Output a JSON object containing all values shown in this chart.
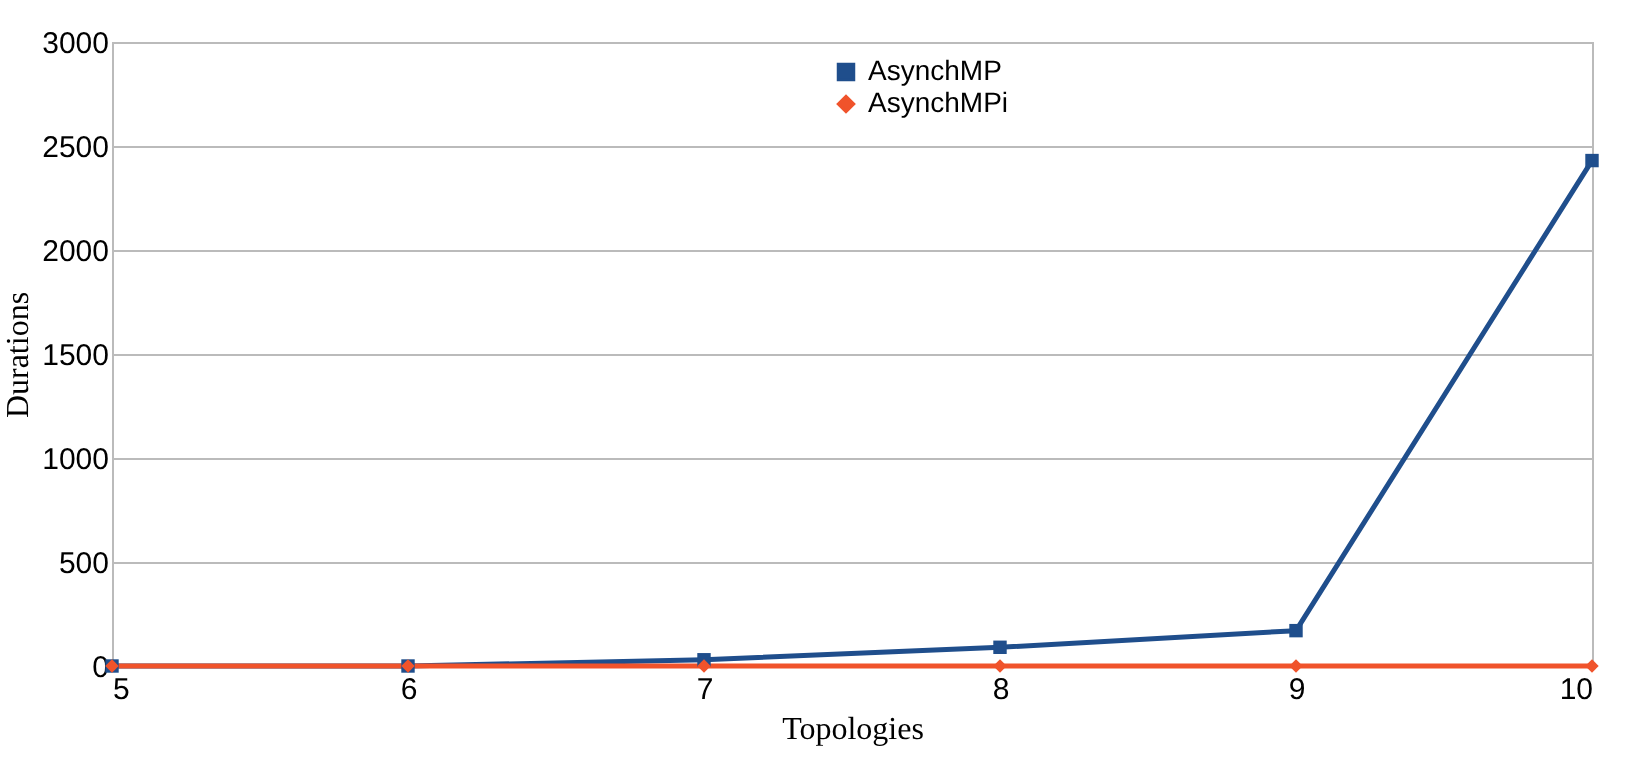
{
  "chart_data": {
    "type": "line",
    "xlabel": "Topologies",
    "ylabel": "Durations",
    "x": [
      5,
      6,
      7,
      8,
      9,
      10
    ],
    "series": [
      {
        "name": "AsynchMP",
        "color": "#1f4e8c",
        "marker": "square",
        "values": [
          0,
          0,
          30,
          90,
          170,
          2430
        ]
      },
      {
        "name": "AsynchMPi",
        "color": "#f0532b",
        "marker": "diamond",
        "values": [
          0,
          0,
          0,
          0,
          0,
          0
        ]
      }
    ],
    "xlim": [
      5,
      10
    ],
    "xticks": [
      5,
      6,
      7,
      8,
      9,
      10
    ],
    "ylim": [
      0,
      3000
    ],
    "yticks": [
      0,
      500,
      1000,
      1500,
      2000,
      2500,
      3000
    ],
    "grid": "y",
    "legend": "top"
  }
}
